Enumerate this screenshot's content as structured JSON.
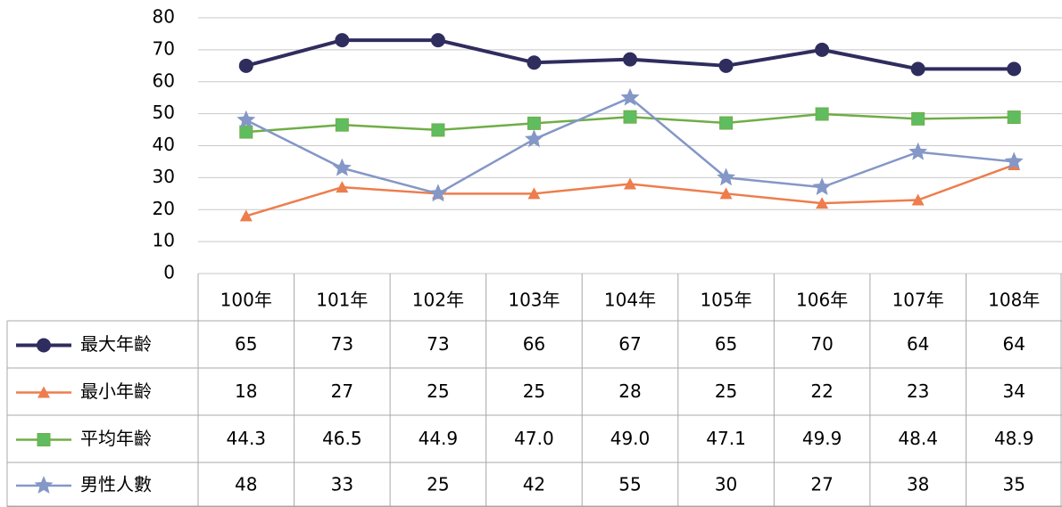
{
  "chart_data": {
    "type": "line",
    "categories": [
      "100年",
      "101年",
      "102年",
      "103年",
      "104年",
      "105年",
      "106年",
      "107年",
      "108年"
    ],
    "series": [
      {
        "name": "最大年齡",
        "color": "#2f2d5e",
        "marker": "circle",
        "values": [
          65,
          73,
          73,
          66,
          67,
          65,
          70,
          64,
          64
        ]
      },
      {
        "name": "最小年齡",
        "color": "#ed7d4c",
        "marker": "triangle",
        "values": [
          18,
          27,
          25,
          25,
          28,
          25,
          22,
          23,
          34
        ]
      },
      {
        "name": "平均年齡",
        "color": "#70ad47",
        "marker": "square",
        "values": [
          44.3,
          46.5,
          44.9,
          47.0,
          49.0,
          47.1,
          49.9,
          48.4,
          48.9
        ],
        "value_labels": [
          "44.3",
          "46.5",
          "44.9",
          "47.0",
          "49.0",
          "47.1",
          "49.9",
          "48.4",
          "48.9"
        ]
      },
      {
        "name": "男性人數",
        "color": "#8497c6",
        "marker": "star",
        "values": [
          48,
          33,
          25,
          42,
          55,
          30,
          27,
          38,
          35
        ]
      }
    ],
    "ylim": [
      0,
      80
    ],
    "yticks": [
      0,
      10,
      20,
      30,
      40,
      50,
      60,
      70,
      80
    ],
    "grid": true,
    "data_table": true
  }
}
